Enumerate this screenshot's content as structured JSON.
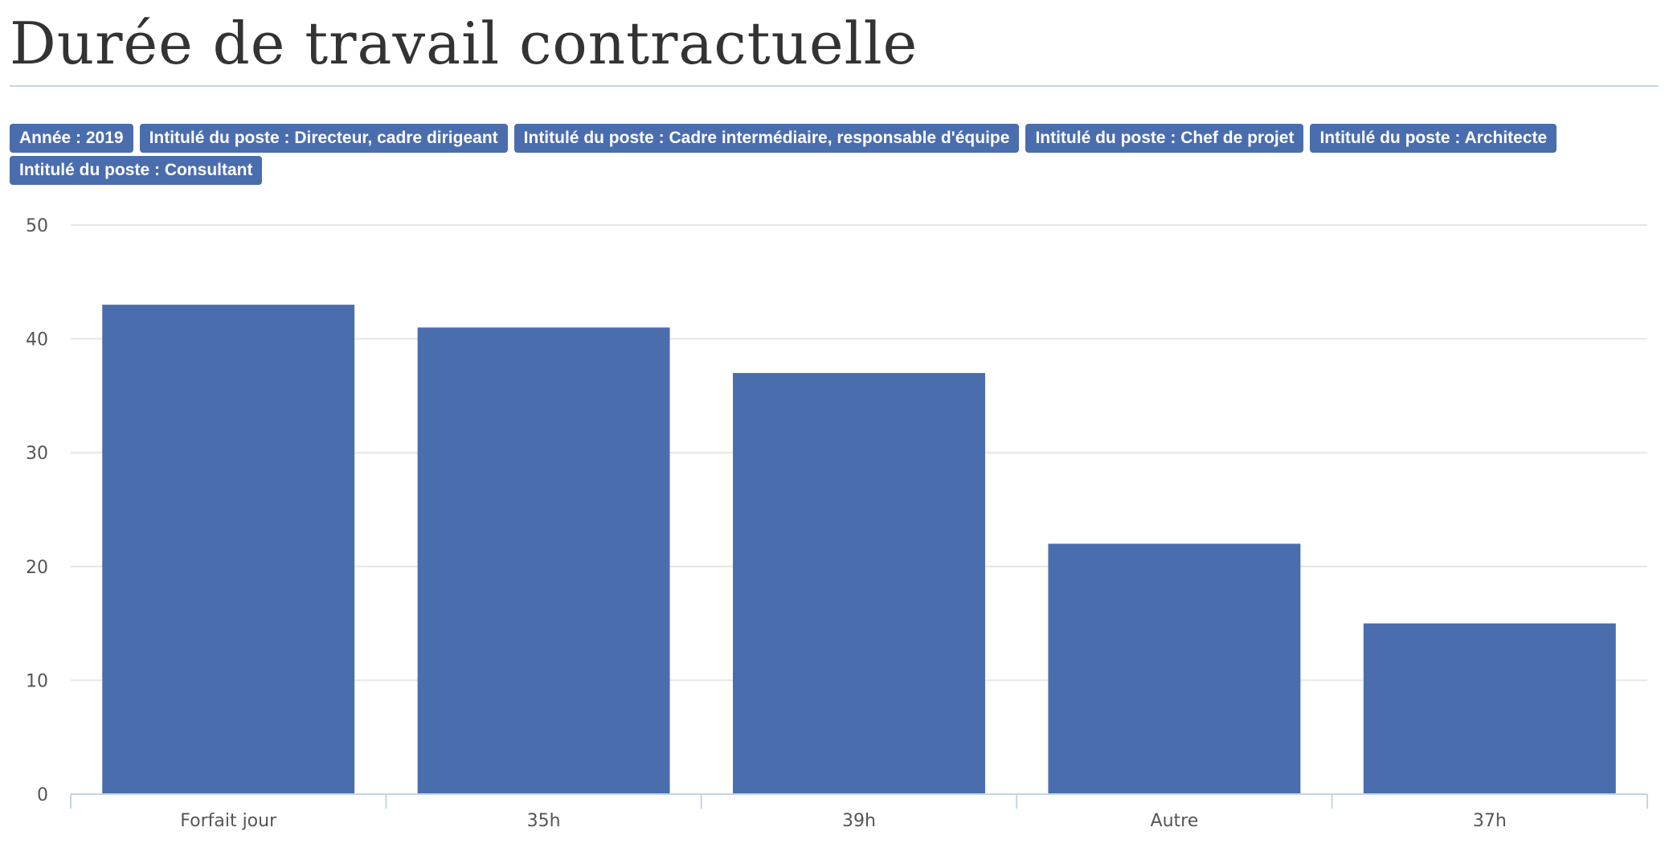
{
  "header": {
    "title": "Durée de travail contractuelle"
  },
  "filters": [
    "Année : 2019",
    "Intitulé du poste : Directeur, cadre dirigeant",
    "Intitulé du poste : Cadre intermédiaire, responsable d'équipe",
    "Intitulé du poste : Chef de projet",
    "Intitulé du poste : Architecte",
    "Intitulé du poste : Consultant"
  ],
  "colors": {
    "bar": "#4a6dae",
    "tag_background": "#4a6dae",
    "grid": "#e6e6e6",
    "axis": "#c5d5e2"
  },
  "chart_data": {
    "type": "bar",
    "categories": [
      "Forfait jour",
      "35h",
      "39h",
      "Autre",
      "37h"
    ],
    "values": [
      43,
      41,
      37,
      22,
      15
    ],
    "y_ticks": [
      0,
      10,
      20,
      30,
      40,
      50
    ],
    "ylim": [
      0,
      50
    ],
    "grid": true,
    "legend": "none",
    "title": "",
    "xlabel": "",
    "ylabel": ""
  }
}
